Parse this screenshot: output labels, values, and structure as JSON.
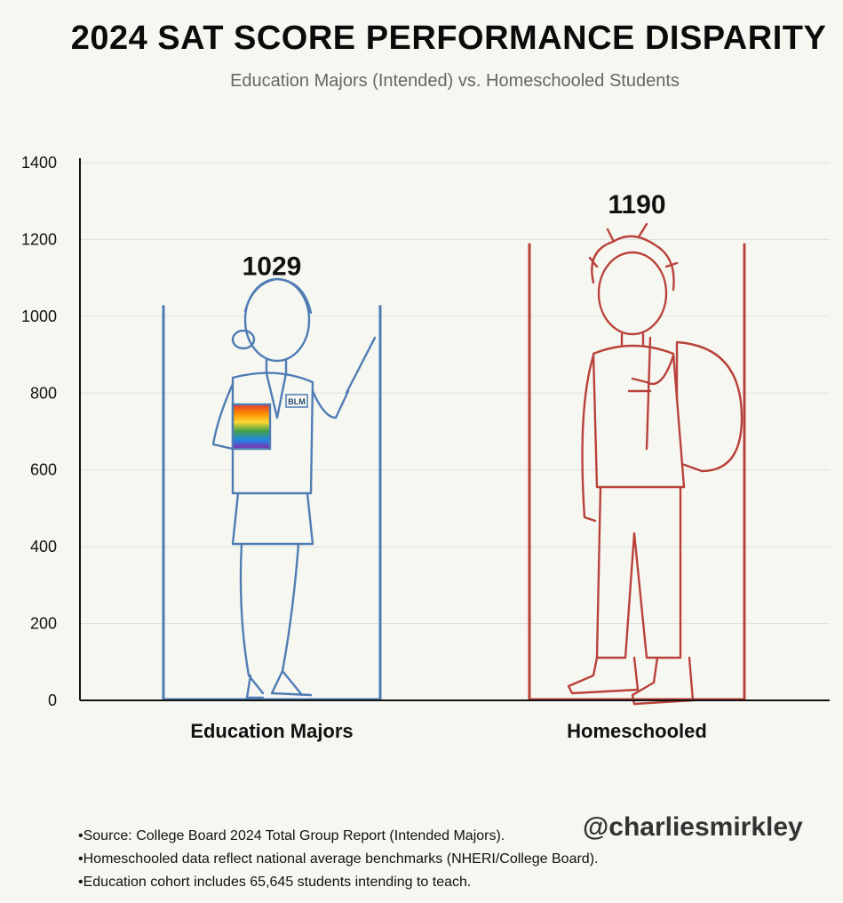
{
  "title": "2024 SAT SCORE PERFORMANCE DISPARITY",
  "subtitle": "Education Majors (Intended) vs. Homeschooled Students",
  "chart_data": {
    "type": "bar",
    "categories": [
      "Education Majors",
      "Homeschooled"
    ],
    "values": [
      1029,
      1190
    ],
    "data_labels": [
      "1029",
      "1190"
    ],
    "ylim": [
      0,
      1400
    ],
    "yticks": [
      0,
      200,
      400,
      600,
      800,
      1000,
      1200,
      1400
    ],
    "grid": true,
    "colors": [
      "#4f7db3",
      "#b8423a"
    ]
  },
  "figures": [
    {
      "icon": "teacher-figure-icon",
      "badge": "BLM"
    },
    {
      "icon": "student-with-backpack-icon"
    }
  ],
  "notes": [
    "Source: College Board 2024 Total Group Report (Intended Majors).",
    "Homeschooled data reflect national average benchmarks (NHERI/College Board).",
    "Education cohort includes 65,645 students intending to teach."
  ],
  "handle": "@charliesmirkley"
}
